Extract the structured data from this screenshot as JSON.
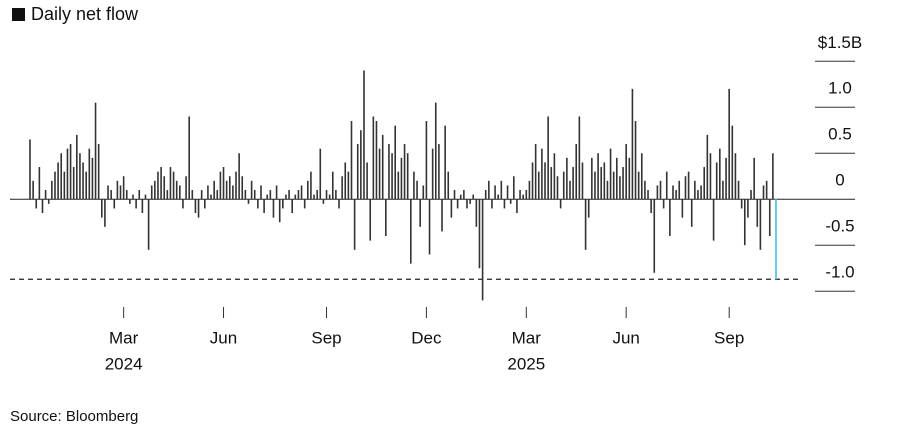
{
  "chart_data": {
    "type": "bar",
    "legend": "Daily net flow",
    "series": [
      {
        "name": "Daily net flow",
        "color": "#333333",
        "values": [
          0.65,
          0.2,
          -0.1,
          0.35,
          -0.15,
          0.1,
          -0.05,
          0.2,
          0.3,
          0.4,
          0.5,
          0.3,
          0.55,
          0.6,
          0.35,
          0.7,
          0.5,
          0.4,
          0.3,
          0.55,
          0.45,
          1.05,
          0.6,
          -0.2,
          -0.3,
          0.15,
          0.1,
          -0.1,
          0.2,
          0.15,
          0.25,
          0.1,
          -0.05,
          0.05,
          -0.1,
          0.1,
          -0.15,
          0.05,
          -0.55,
          0.15,
          0.2,
          0.3,
          0.35,
          0.25,
          0.1,
          0.35,
          0.3,
          0.2,
          0.15,
          -0.1,
          0.25,
          0.9,
          0.1,
          -0.15,
          -0.2,
          0.1,
          -0.1,
          0.15,
          0.05,
          0.2,
          0.1,
          0.3,
          0.35,
          0.2,
          0.25,
          0.15,
          0.3,
          0.5,
          0.25,
          0.1,
          -0.05,
          0.2,
          0.1,
          -0.1,
          0.15,
          -0.15,
          0.05,
          0.1,
          -0.2,
          0.15,
          -0.25,
          -0.1,
          0.05,
          0.1,
          -0.15,
          0.05,
          0.1,
          0.15,
          -0.1,
          0.2,
          0.3,
          0.05,
          0.1,
          0.55,
          -0.05,
          0.1,
          0.05,
          0.3,
          0.1,
          -0.1,
          0.25,
          0.4,
          0.3,
          0.85,
          -0.55,
          0.6,
          0.75,
          1.4,
          0.4,
          -0.45,
          0.9,
          0.85,
          0.55,
          0.7,
          -0.4,
          0.6,
          0.5,
          0.8,
          0.3,
          0.45,
          0.6,
          0.5,
          -0.7,
          0.3,
          0.2,
          -0.3,
          0.15,
          0.85,
          -0.6,
          0.55,
          1.05,
          0.6,
          -0.35,
          0.8,
          0.3,
          -0.2,
          0.1,
          -0.1,
          0.05,
          0.1,
          -0.1,
          -0.05,
          0.05,
          -0.3,
          -0.75,
          -1.1,
          0.1,
          0.2,
          -0.1,
          0.15,
          0.05,
          0.2,
          -0.1,
          0.15,
          -0.05,
          0.25,
          -0.15,
          0.1,
          0.05,
          0.1,
          0.2,
          0.4,
          0.6,
          0.3,
          0.55,
          0.4,
          0.9,
          0.35,
          0.5,
          0.25,
          -0.1,
          0.3,
          0.45,
          0.2,
          0.35,
          0.6,
          0.9,
          0.4,
          -0.55,
          -0.2,
          0.45,
          0.3,
          0.5,
          0.35,
          0.4,
          0.2,
          0.55,
          0.3,
          0.45,
          0.25,
          0.35,
          0.6,
          0.45,
          1.2,
          0.85,
          0.3,
          0.5,
          0.2,
          0.1,
          -0.15,
          -0.8,
          0.15,
          0.2,
          -0.1,
          0.3,
          -0.4,
          0.15,
          0.1,
          0.2,
          -0.2,
          0.25,
          0.3,
          -0.3,
          0.2,
          0.1,
          0.15,
          0.35,
          0.7,
          0.5,
          -0.45,
          0.4,
          0.55,
          0.2,
          0.45,
          1.2,
          0.8,
          0.5,
          0.2,
          -0.1,
          -0.5,
          -0.2,
          0.1,
          0.45,
          -0.3,
          -0.55,
          0.15,
          0.2,
          -0.4,
          0.5,
          -0.87
        ]
      }
    ],
    "highlight": {
      "index": 239,
      "color": "#6ec6e8"
    },
    "reference_line": {
      "value": -0.87,
      "style": "dashed"
    },
    "xlim": [
      0,
      239
    ],
    "xticks": [
      {
        "value": 30,
        "label": "Mar"
      },
      {
        "value": 62,
        "label": "Jun"
      },
      {
        "value": 95,
        "label": "Sep"
      },
      {
        "value": 127,
        "label": "Dec"
      },
      {
        "value": 159,
        "label": "Mar"
      },
      {
        "value": 191,
        "label": "Jun"
      },
      {
        "value": 224,
        "label": "Sep"
      }
    ],
    "xtick_years": [
      {
        "value": 30,
        "label": "2024"
      },
      {
        "value": 159,
        "label": "2025"
      }
    ],
    "ylim": [
      -1.15,
      1.84
    ],
    "yticks": [
      {
        "value": 1.5,
        "label": "$1.5B"
      },
      {
        "value": 1,
        "label": "1.0"
      },
      0.5,
      0,
      -0.5,
      {
        "value": -1,
        "label": "-1.0"
      }
    ],
    "source": "Source: Bloomberg"
  }
}
